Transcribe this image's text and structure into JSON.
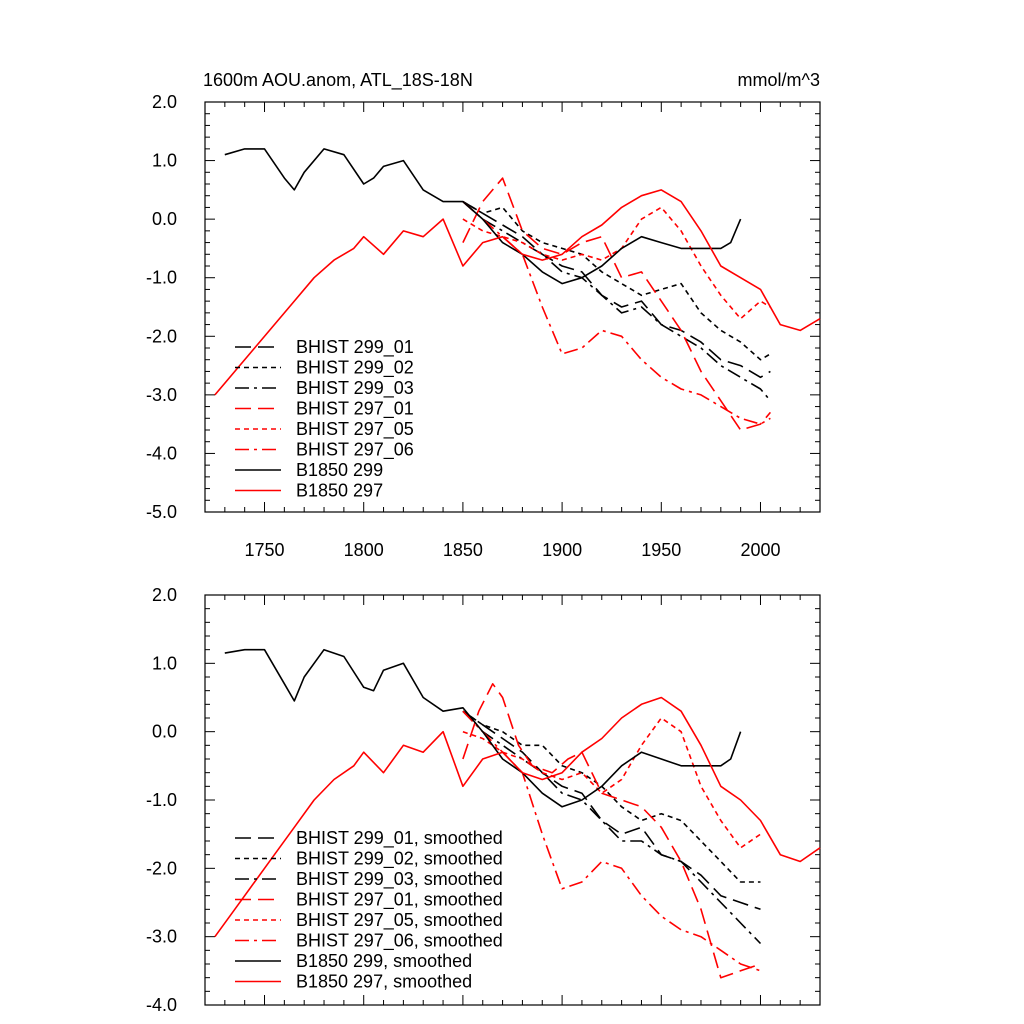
{
  "chart_data": [
    {
      "type": "line",
      "title": "1600m AOU.anom, ATL_18S-18N",
      "units": "mmol/m^3",
      "xlim": [
        1720,
        2030
      ],
      "ylim": [
        -5.0,
        2.0
      ],
      "xticks": [
        1750,
        1800,
        1850,
        1900,
        1950,
        2000
      ],
      "yticks": [
        2.0,
        1.0,
        0.0,
        -1.0,
        -2.0,
        -3.0,
        -4.0,
        -5.0
      ],
      "ytick_labels": [
        "2.0",
        "1.0",
        "0.0",
        "-1.0",
        "-2.0",
        "-3.0",
        "-4.0",
        "-5.0"
      ],
      "xtick_labels": [
        "1750",
        "1800",
        "1850",
        "1900",
        "1950",
        "2000"
      ],
      "legend_position": "bottom-left",
      "series": [
        {
          "name": "BHIST 299_01",
          "color": "#000000",
          "dash": "long-dash",
          "x": [
            1850,
            1860,
            1870,
            1880,
            1890,
            1900,
            1910,
            1920,
            1930,
            1940,
            1950,
            1960,
            1970,
            1980,
            1990,
            2000,
            2005
          ],
          "y": [
            0.3,
            0.1,
            -0.1,
            -0.3,
            -0.6,
            -0.8,
            -0.9,
            -1.3,
            -1.5,
            -1.4,
            -1.8,
            -1.9,
            -2.1,
            -2.4,
            -2.5,
            -2.7,
            -2.6
          ]
        },
        {
          "name": "BHIST 299_02",
          "color": "#000000",
          "dash": "short-dash",
          "x": [
            1850,
            1860,
            1870,
            1880,
            1890,
            1900,
            1910,
            1920,
            1930,
            1940,
            1950,
            1960,
            1970,
            1980,
            1990,
            2000,
            2005
          ],
          "y": [
            0.3,
            0.1,
            0.2,
            -0.2,
            -0.4,
            -0.5,
            -0.6,
            -0.9,
            -1.1,
            -1.3,
            -1.2,
            -1.1,
            -1.6,
            -1.9,
            -2.1,
            -2.4,
            -2.3
          ]
        },
        {
          "name": "BHIST 299_03",
          "color": "#000000",
          "dash": "dash-dot",
          "x": [
            1850,
            1860,
            1870,
            1880,
            1890,
            1900,
            1910,
            1920,
            1930,
            1940,
            1950,
            1960,
            1970,
            1980,
            1990,
            2000,
            2005
          ],
          "y": [
            0.3,
            0.0,
            -0.2,
            -0.4,
            -0.6,
            -0.9,
            -1.0,
            -1.3,
            -1.6,
            -1.5,
            -1.8,
            -2.0,
            -2.2,
            -2.5,
            -2.7,
            -2.9,
            -3.1
          ]
        },
        {
          "name": "BHIST 297_01",
          "color": "#ff0000",
          "dash": "long-dash",
          "x": [
            1850,
            1860,
            1870,
            1880,
            1890,
            1900,
            1910,
            1920,
            1930,
            1940,
            1950,
            1960,
            1970,
            1980,
            1990,
            2000,
            2005
          ],
          "y": [
            -0.4,
            0.3,
            0.7,
            -0.2,
            -0.5,
            -0.6,
            -0.4,
            -0.3,
            -1.0,
            -0.9,
            -1.4,
            -1.9,
            -2.6,
            -3.1,
            -3.6,
            -3.5,
            -3.3
          ]
        },
        {
          "name": "BHIST 297_05",
          "color": "#ff0000",
          "dash": "short-dash",
          "x": [
            1850,
            1860,
            1870,
            1880,
            1890,
            1900,
            1910,
            1920,
            1930,
            1940,
            1950,
            1960,
            1970,
            1980,
            1990,
            2000,
            2005
          ],
          "y": [
            0.0,
            -0.2,
            -0.3,
            -0.4,
            -0.6,
            -0.7,
            -0.6,
            -0.7,
            -0.5,
            0.0,
            0.2,
            -0.2,
            -0.8,
            -1.3,
            -1.7,
            -1.4,
            -1.5
          ]
        },
        {
          "name": "BHIST 297_06",
          "color": "#ff0000",
          "dash": "dash-dot",
          "x": [
            1850,
            1860,
            1870,
            1880,
            1890,
            1900,
            1910,
            1920,
            1930,
            1940,
            1950,
            1960,
            1970,
            1980,
            1990,
            2000,
            2005
          ],
          "y": [
            0.3,
            0.0,
            -0.3,
            -0.6,
            -1.5,
            -2.3,
            -2.2,
            -1.9,
            -2.0,
            -2.4,
            -2.7,
            -2.9,
            -3.0,
            -3.2,
            -3.4,
            -3.5,
            -3.4
          ]
        },
        {
          "name": "B1850 299",
          "color": "#000000",
          "dash": "solid",
          "x": [
            1730,
            1740,
            1750,
            1760,
            1765,
            1770,
            1780,
            1790,
            1800,
            1805,
            1810,
            1820,
            1830,
            1840,
            1850,
            1860,
            1870,
            1880,
            1890,
            1900,
            1910,
            1920,
            1930,
            1940,
            1950,
            1960,
            1970,
            1980,
            1985,
            1990
          ],
          "y": [
            1.1,
            1.2,
            1.2,
            0.7,
            0.5,
            0.8,
            1.2,
            1.1,
            0.6,
            0.7,
            0.9,
            1.0,
            0.5,
            0.3,
            0.3,
            0.0,
            -0.4,
            -0.6,
            -0.9,
            -1.1,
            -1.0,
            -0.8,
            -0.5,
            -0.3,
            -0.4,
            -0.5,
            -0.5,
            -0.5,
            -0.4,
            0.0
          ]
        },
        {
          "name": "B1850 297",
          "color": "#ff0000",
          "dash": "solid",
          "x": [
            1725,
            1735,
            1745,
            1755,
            1765,
            1775,
            1785,
            1795,
            1800,
            1810,
            1820,
            1830,
            1840,
            1850,
            1860,
            1870,
            1880,
            1890,
            1900,
            1910,
            1920,
            1930,
            1940,
            1950,
            1960,
            1970,
            1980,
            1990,
            2000,
            2010,
            2020,
            2030
          ],
          "y": [
            -3.0,
            -2.6,
            -2.2,
            -1.8,
            -1.4,
            -1.0,
            -0.7,
            -0.5,
            -0.3,
            -0.6,
            -0.2,
            -0.3,
            0.0,
            -0.8,
            -0.4,
            -0.3,
            -0.6,
            -0.7,
            -0.6,
            -0.3,
            -0.1,
            0.2,
            0.4,
            0.5,
            0.3,
            -0.2,
            -0.8,
            -1.0,
            -1.2,
            -1.8,
            -1.9,
            -1.7
          ]
        }
      ]
    },
    {
      "type": "line",
      "title": "",
      "xlim": [
        1720,
        2030
      ],
      "ylim": [
        -4.0,
        2.0
      ],
      "yticks": [
        2.0,
        1.0,
        0.0,
        -1.0,
        -2.0,
        -3.0,
        -4.0
      ],
      "ytick_labels": [
        "2.0",
        "1.0",
        "0.0",
        "-1.0",
        "-2.0",
        "-3.0",
        "-4.0"
      ],
      "legend_position": "bottom-left",
      "series": [
        {
          "name": "BHIST 299_01, smoothed",
          "color": "#000000",
          "dash": "long-dash",
          "x": [
            1850,
            1860,
            1870,
            1880,
            1890,
            1900,
            1910,
            1920,
            1930,
            1940,
            1950,
            1960,
            1970,
            1980,
            1990,
            2000
          ],
          "y": [
            0.3,
            0.1,
            -0.1,
            -0.3,
            -0.6,
            -0.8,
            -0.9,
            -1.3,
            -1.5,
            -1.4,
            -1.8,
            -1.9,
            -2.1,
            -2.4,
            -2.5,
            -2.6
          ]
        },
        {
          "name": "BHIST 299_02, smoothed",
          "color": "#000000",
          "dash": "short-dash",
          "x": [
            1850,
            1860,
            1870,
            1880,
            1890,
            1900,
            1910,
            1920,
            1930,
            1940,
            1950,
            1960,
            1970,
            1980,
            1990,
            2000
          ],
          "y": [
            0.3,
            0.1,
            0.0,
            -0.2,
            -0.2,
            -0.5,
            -0.6,
            -0.8,
            -1.1,
            -1.3,
            -1.2,
            -1.3,
            -1.6,
            -1.9,
            -2.2,
            -2.2
          ]
        },
        {
          "name": "BHIST 299_03, smoothed",
          "color": "#000000",
          "dash": "dash-dot",
          "x": [
            1850,
            1860,
            1870,
            1880,
            1890,
            1900,
            1910,
            1920,
            1930,
            1940,
            1950,
            1960,
            1970,
            1980,
            1990,
            2000
          ],
          "y": [
            0.3,
            0.0,
            -0.2,
            -0.4,
            -0.6,
            -0.9,
            -1.0,
            -1.3,
            -1.6,
            -1.6,
            -1.8,
            -1.9,
            -2.2,
            -2.5,
            -2.8,
            -3.1
          ]
        },
        {
          "name": "BHIST 297_01, smoothed",
          "color": "#ff0000",
          "dash": "long-dash",
          "x": [
            1850,
            1858,
            1865,
            1870,
            1878,
            1885,
            1895,
            1903,
            1910,
            1920,
            1930,
            1940,
            1950,
            1960,
            1970,
            1980,
            1990,
            2000
          ],
          "y": [
            -0.4,
            0.3,
            0.7,
            0.5,
            -0.2,
            -0.5,
            -0.6,
            -0.4,
            -0.3,
            -0.9,
            -1.0,
            -1.1,
            -1.4,
            -1.9,
            -2.6,
            -3.6,
            -3.5,
            -3.4
          ]
        },
        {
          "name": "BHIST 297_05, smoothed",
          "color": "#ff0000",
          "dash": "short-dash",
          "x": [
            1850,
            1860,
            1870,
            1880,
            1890,
            1900,
            1910,
            1920,
            1930,
            1940,
            1950,
            1960,
            1970,
            1980,
            1990,
            2000
          ],
          "y": [
            0.0,
            -0.1,
            -0.3,
            -0.4,
            -0.6,
            -0.7,
            -0.6,
            -0.9,
            -0.7,
            -0.2,
            0.2,
            0.0,
            -0.8,
            -1.3,
            -1.7,
            -1.5
          ]
        },
        {
          "name": "BHIST 297_06, smoothed",
          "color": "#ff0000",
          "dash": "dash-dot",
          "x": [
            1850,
            1860,
            1870,
            1880,
            1890,
            1900,
            1910,
            1920,
            1930,
            1940,
            1950,
            1960,
            1970,
            1980,
            1990,
            2000
          ],
          "y": [
            0.3,
            0.0,
            -0.3,
            -0.6,
            -1.5,
            -2.3,
            -2.2,
            -1.9,
            -2.0,
            -2.4,
            -2.7,
            -2.9,
            -3.0,
            -3.2,
            -3.4,
            -3.5
          ]
        },
        {
          "name": "B1850 299, smoothed",
          "color": "#000000",
          "dash": "solid",
          "x": [
            1730,
            1740,
            1750,
            1760,
            1765,
            1770,
            1780,
            1790,
            1800,
            1805,
            1810,
            1820,
            1830,
            1840,
            1850,
            1860,
            1870,
            1880,
            1890,
            1900,
            1910,
            1920,
            1930,
            1940,
            1950,
            1960,
            1970,
            1980,
            1985,
            1990
          ],
          "y": [
            1.15,
            1.2,
            1.2,
            0.7,
            0.45,
            0.8,
            1.2,
            1.1,
            0.65,
            0.6,
            0.9,
            1.0,
            0.5,
            0.3,
            0.35,
            0.0,
            -0.4,
            -0.6,
            -0.9,
            -1.1,
            -1.0,
            -0.8,
            -0.5,
            -0.3,
            -0.4,
            -0.5,
            -0.5,
            -0.5,
            -0.4,
            0.0
          ]
        },
        {
          "name": "B1850 297, smoothed",
          "color": "#ff0000",
          "dash": "solid",
          "x": [
            1725,
            1735,
            1745,
            1755,
            1765,
            1775,
            1785,
            1795,
            1800,
            1810,
            1820,
            1830,
            1840,
            1850,
            1860,
            1870,
            1880,
            1890,
            1900,
            1910,
            1920,
            1930,
            1940,
            1950,
            1960,
            1970,
            1980,
            1990,
            2000,
            2010,
            2020,
            2030
          ],
          "y": [
            -3.0,
            -2.6,
            -2.2,
            -1.8,
            -1.4,
            -1.0,
            -0.7,
            -0.5,
            -0.3,
            -0.6,
            -0.2,
            -0.3,
            0.0,
            -0.8,
            -0.4,
            -0.3,
            -0.6,
            -0.7,
            -0.6,
            -0.3,
            -0.1,
            0.2,
            0.4,
            0.5,
            0.3,
            -0.2,
            -0.8,
            -1.0,
            -1.3,
            -1.8,
            -1.9,
            -1.7
          ]
        }
      ]
    }
  ]
}
